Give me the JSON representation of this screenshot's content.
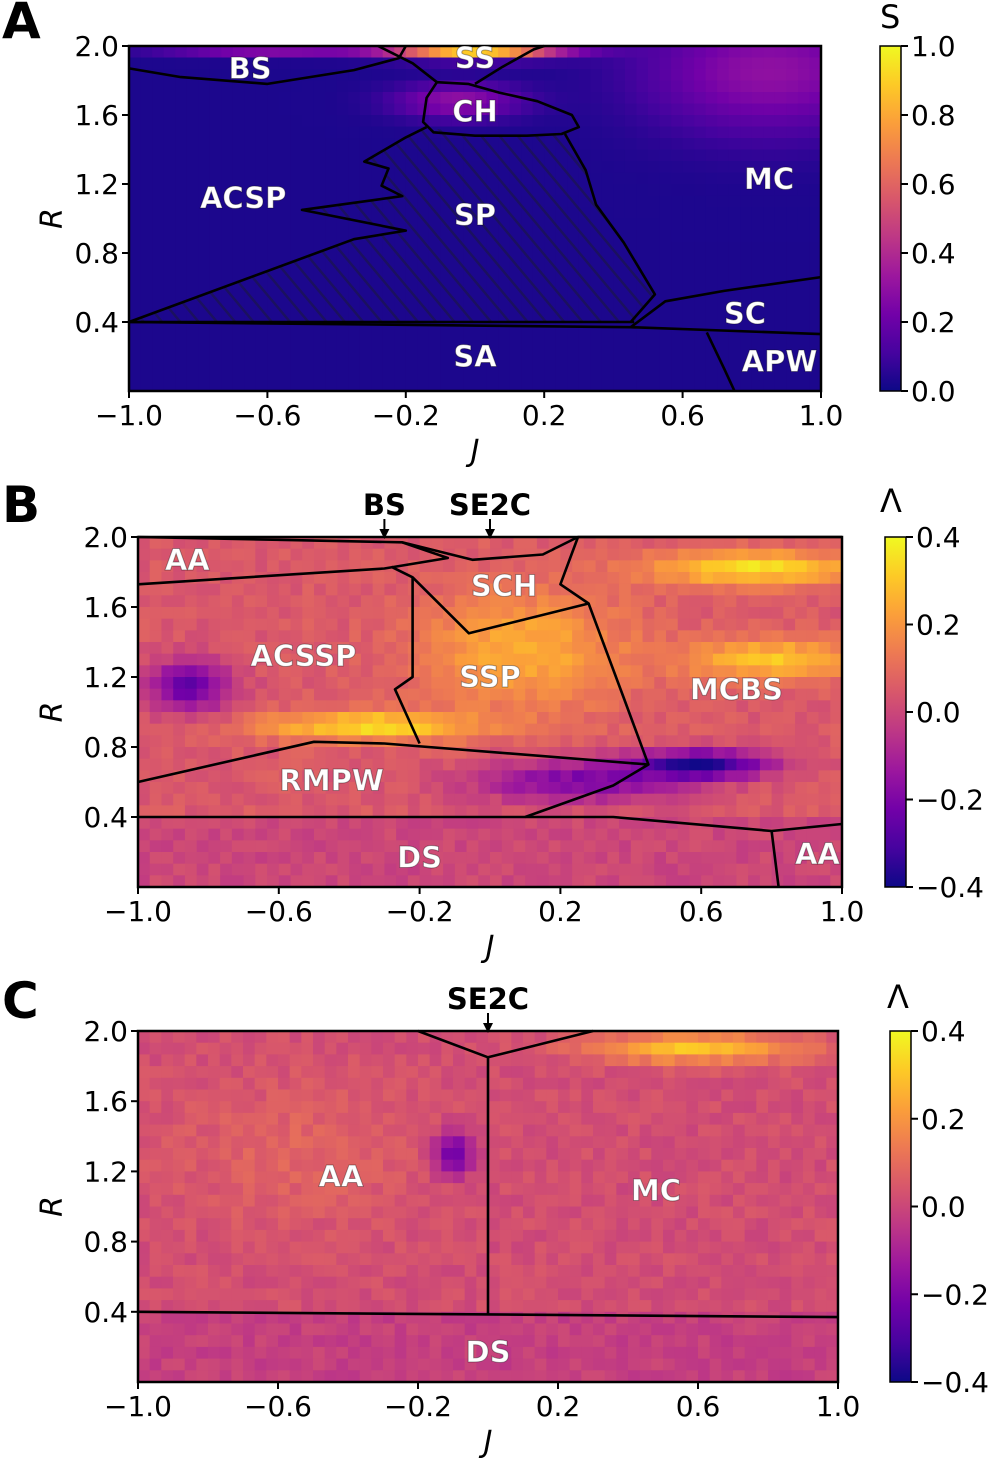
{
  "figure": {
    "colors": {
      "plasma": [
        "#0d0887",
        "#46039f",
        "#7201a8",
        "#9c179e",
        "#bd3786",
        "#d8576b",
        "#ed7953",
        "#fb9f3a",
        "#fdca26",
        "#f0f921"
      ],
      "boundary": "#000000",
      "region_label": "#ffffff",
      "tick_text": "#000000"
    }
  },
  "chart_data": [
    {
      "panel": "A",
      "type": "heatmap",
      "xlabel": "J",
      "ylabel": "R",
      "xlim": [
        -1.0,
        1.0
      ],
      "ylim": [
        0.0,
        2.0
      ],
      "xticks": [
        "−1.0",
        "−0.6",
        "−0.2",
        "0.2",
        "0.6",
        "1.0"
      ],
      "xtick_values": [
        -1.0,
        -0.6,
        -0.2,
        0.2,
        0.6,
        1.0
      ],
      "yticks": [
        "0.4",
        "0.8",
        "1.2",
        "1.6",
        "2.0"
      ],
      "ytick_values": [
        0.4,
        0.8,
        1.2,
        1.6,
        2.0
      ],
      "colorbar": {
        "label": "S",
        "range": [
          0.0,
          1.0
        ],
        "ticks": [
          "0.0",
          "0.2",
          "0.4",
          "0.6",
          "0.8",
          "1.0"
        ],
        "tick_values": [
          0.0,
          0.2,
          0.4,
          0.6,
          0.8,
          1.0
        ],
        "colormap": "plasma"
      },
      "background_value": 0.03,
      "hot_spots": [
        {
          "J": 0.0,
          "R": 1.98,
          "value": 0.95,
          "sJ": 0.25,
          "sR": 0.05
        },
        {
          "J": -0.05,
          "R": 1.68,
          "value": 0.3,
          "sJ": 0.18,
          "sR": 0.1
        },
        {
          "J": 0.85,
          "R": 1.85,
          "value": 0.3,
          "sJ": 0.35,
          "sR": 0.35
        },
        {
          "J": -0.6,
          "R": 1.98,
          "value": 0.28,
          "sJ": 0.3,
          "sR": 0.04
        }
      ],
      "regions": [
        {
          "label": "BS",
          "J": -0.65,
          "R": 1.87
        },
        {
          "label": "SS",
          "J": 0.0,
          "R": 1.93
        },
        {
          "label": "CH",
          "J": 0.0,
          "R": 1.62
        },
        {
          "label": "ACSP",
          "J": -0.67,
          "R": 1.12
        },
        {
          "label": "SP",
          "J": 0.0,
          "R": 1.02
        },
        {
          "label": "MC",
          "J": 0.85,
          "R": 1.23
        },
        {
          "label": "SC",
          "J": 0.78,
          "R": 0.45
        },
        {
          "label": "SA",
          "J": 0.0,
          "R": 0.2
        },
        {
          "label": "APW",
          "J": 0.88,
          "R": 0.17
        }
      ],
      "boundaries": [
        [
          [
            -1.0,
            1.87
          ],
          [
            -0.85,
            1.82
          ],
          [
            -0.6,
            1.78
          ],
          [
            -0.35,
            1.86
          ],
          [
            -0.22,
            1.93
          ],
          [
            -0.2,
            2.0
          ]
        ],
        [
          [
            -0.28,
            2.0
          ],
          [
            -0.18,
            1.9
          ],
          [
            -0.11,
            1.79
          ]
        ],
        [
          [
            0.0,
            1.78
          ],
          [
            0.08,
            1.88
          ],
          [
            0.17,
            1.98
          ],
          [
            0.2,
            2.0
          ]
        ],
        [
          [
            -0.11,
            1.79
          ],
          [
            -0.02,
            1.78
          ],
          [
            0.07,
            1.73
          ],
          [
            0.18,
            1.68
          ],
          [
            0.28,
            1.6
          ],
          [
            0.3,
            1.53
          ],
          [
            0.25,
            1.49
          ],
          [
            0.15,
            1.48
          ],
          [
            0.0,
            1.48
          ],
          [
            -0.12,
            1.5
          ],
          [
            -0.15,
            1.56
          ],
          [
            -0.14,
            1.7
          ],
          [
            -0.11,
            1.79
          ]
        ],
        [
          [
            -0.14,
            1.53
          ],
          [
            -0.2,
            1.47
          ],
          [
            -0.32,
            1.33
          ],
          [
            -0.25,
            1.29
          ],
          [
            -0.27,
            1.19
          ],
          [
            -0.21,
            1.13
          ],
          [
            -0.5,
            1.05
          ],
          [
            -0.2,
            0.93
          ],
          [
            -0.35,
            0.88
          ],
          [
            -1.0,
            0.4
          ],
          [
            0.46,
            0.4
          ]
        ],
        [
          [
            0.26,
            1.49
          ],
          [
            0.32,
            1.28
          ],
          [
            0.35,
            1.08
          ],
          [
            0.43,
            0.86
          ],
          [
            0.52,
            0.56
          ],
          [
            0.45,
            0.4
          ]
        ],
        [
          [
            -1.0,
            0.4
          ],
          [
            0.45,
            0.37
          ],
          [
            1.0,
            0.33
          ]
        ],
        [
          [
            0.45,
            0.37
          ],
          [
            0.55,
            0.52
          ],
          [
            0.72,
            0.58
          ],
          [
            1.0,
            0.66
          ]
        ],
        [
          [
            0.67,
            0.34
          ],
          [
            0.72,
            0.13
          ],
          [
            0.75,
            0.0
          ]
        ]
      ],
      "hatched": [
        [
          -0.14,
          1.53
        ],
        [
          -0.2,
          1.47
        ],
        [
          -0.32,
          1.33
        ],
        [
          -0.25,
          1.29
        ],
        [
          -0.27,
          1.19
        ],
        [
          -0.21,
          1.13
        ],
        [
          -0.5,
          1.05
        ],
        [
          -0.2,
          0.93
        ],
        [
          -0.35,
          0.88
        ],
        [
          -1.0,
          0.4
        ],
        [
          0.46,
          0.4
        ],
        [
          0.52,
          0.56
        ],
        [
          0.43,
          0.86
        ],
        [
          0.35,
          1.08
        ],
        [
          0.32,
          1.28
        ],
        [
          0.26,
          1.49
        ],
        [
          0.0,
          1.48
        ]
      ]
    },
    {
      "panel": "B",
      "type": "heatmap",
      "xlabel": "J",
      "ylabel": "R",
      "xlim": [
        -1.0,
        1.0
      ],
      "ylim": [
        0.0,
        2.0
      ],
      "xticks": [
        "−1.0",
        "−0.6",
        "−0.2",
        "0.2",
        "0.6",
        "1.0"
      ],
      "xtick_values": [
        -1.0,
        -0.6,
        -0.2,
        0.2,
        0.6,
        1.0
      ],
      "yticks": [
        "0.4",
        "0.8",
        "1.2",
        "1.6",
        "2.0"
      ],
      "ytick_values": [
        0.4,
        0.8,
        1.2,
        1.6,
        2.0
      ],
      "colorbar": {
        "label": "Λ",
        "range": [
          -0.4,
          0.4
        ],
        "ticks": [
          "−0.4",
          "−0.2",
          "0.0",
          "0.2",
          "0.4"
        ],
        "tick_values": [
          -0.4,
          -0.2,
          0.0,
          0.2,
          0.4
        ],
        "colormap": "plasma"
      },
      "background_value": 0.05,
      "hot_spots": [
        {
          "J": -0.35,
          "R": 0.92,
          "value": 0.35,
          "sJ": 0.3,
          "sR": 0.08
        },
        {
          "J": 0.1,
          "R": 1.35,
          "value": 0.25,
          "sJ": 0.3,
          "sR": 0.35
        },
        {
          "J": 0.8,
          "R": 1.3,
          "value": 0.3,
          "sJ": 0.25,
          "sR": 0.12
        },
        {
          "J": 0.75,
          "R": 1.82,
          "value": 0.35,
          "sJ": 0.3,
          "sR": 0.1
        },
        {
          "J": 0.6,
          "R": 0.7,
          "value": -0.35,
          "sJ": 0.2,
          "sR": 0.08
        },
        {
          "J": -0.85,
          "R": 1.15,
          "value": -0.25,
          "sJ": 0.12,
          "sR": 0.15
        },
        {
          "J": 0.25,
          "R": 0.6,
          "value": -0.2,
          "sJ": 0.3,
          "sR": 0.12
        }
      ],
      "band_value": 0.0,
      "band_rmax": 0.4,
      "band_jmin": -1.0,
      "band_jmax": 1.0,
      "regions": [
        {
          "label": "AA",
          "J": -0.86,
          "R": 1.87
        },
        {
          "label": "SCH",
          "J": 0.04,
          "R": 1.72
        },
        {
          "label": "ACSSP",
          "J": -0.53,
          "R": 1.32
        },
        {
          "label": "SSP",
          "J": 0.0,
          "R": 1.2
        },
        {
          "label": "MCBS",
          "J": 0.7,
          "R": 1.13
        },
        {
          "label": "RMPW",
          "J": -0.45,
          "R": 0.61
        },
        {
          "label": "DS",
          "J": -0.2,
          "R": 0.17
        },
        {
          "label": "AA",
          "J": 0.93,
          "R": 0.19
        }
      ],
      "annotations": [
        {
          "label": "BS",
          "J": -0.3
        },
        {
          "label": "SE2C",
          "J": 0.0
        }
      ],
      "boundaries": [
        [
          [
            -1.0,
            2.0
          ],
          [
            -0.25,
            1.97
          ],
          [
            -0.12,
            1.88
          ],
          [
            -0.3,
            1.82
          ],
          [
            -1.0,
            1.73
          ]
        ],
        [
          [
            -0.25,
            1.97
          ],
          [
            -0.05,
            1.87
          ],
          [
            0.15,
            1.9
          ],
          [
            0.25,
            2.0
          ]
        ],
        [
          [
            -0.28,
            1.83
          ],
          [
            -0.22,
            1.77
          ],
          [
            -0.06,
            1.45
          ],
          [
            0.28,
            1.62
          ],
          [
            0.2,
            1.73
          ],
          [
            0.25,
            2.0
          ],
          [
            1.0,
            2.0
          ]
        ],
        [
          [
            -0.22,
            1.77
          ],
          [
            -0.22,
            1.2
          ],
          [
            -0.27,
            1.13
          ],
          [
            -0.2,
            0.82
          ]
        ],
        [
          [
            0.28,
            1.62
          ],
          [
            0.38,
            1.08
          ],
          [
            0.45,
            0.7
          ],
          [
            0.35,
            0.58
          ],
          [
            0.1,
            0.4
          ]
        ],
        [
          [
            -1.0,
            0.6
          ],
          [
            -0.5,
            0.83
          ],
          [
            -0.3,
            0.82
          ],
          [
            0.45,
            0.7
          ]
        ],
        [
          [
            -1.0,
            0.4
          ],
          [
            0.35,
            0.4
          ],
          [
            0.8,
            0.32
          ],
          [
            1.0,
            0.36
          ]
        ],
        [
          [
            0.8,
            0.32
          ],
          [
            0.82,
            0.0
          ]
        ]
      ]
    },
    {
      "panel": "C",
      "type": "heatmap",
      "xlabel": "J",
      "ylabel": "R",
      "xlim": [
        -1.0,
        1.0
      ],
      "ylim": [
        0.0,
        2.0
      ],
      "xticks": [
        "−1.0",
        "−0.6",
        "−0.2",
        "0.2",
        "0.6",
        "1.0"
      ],
      "xtick_values": [
        -1.0,
        -0.6,
        -0.2,
        0.2,
        0.6,
        1.0
      ],
      "yticks": [
        "0.4",
        "0.8",
        "1.2",
        "1.6",
        "2.0"
      ],
      "ytick_values": [
        0.4,
        0.8,
        1.2,
        1.6,
        2.0
      ],
      "colorbar": {
        "label": "Λ",
        "range": [
          -0.4,
          0.4
        ],
        "ticks": [
          "−0.4",
          "−0.2",
          "0.0",
          "0.2",
          "0.4"
        ],
        "tick_values": [
          -0.4,
          -0.2,
          0.0,
          0.2,
          0.4
        ],
        "colormap": "plasma"
      },
      "background_value": 0.02,
      "hot_spots": [
        {
          "J": 0.6,
          "R": 1.9,
          "value": 0.3,
          "sJ": 0.3,
          "sR": 0.08
        },
        {
          "J": -0.1,
          "R": 1.3,
          "value": -0.25,
          "sJ": 0.06,
          "sR": 0.12
        },
        {
          "J": -0.55,
          "R": 1.3,
          "value": 0.08,
          "sJ": 0.35,
          "sR": 0.4
        }
      ],
      "band_value": -0.02,
      "band_rmax": 0.38,
      "band_jmin": -1.0,
      "band_jmax": 1.0,
      "regions": [
        {
          "label": "AA",
          "J": -0.42,
          "R": 1.17
        },
        {
          "label": "MC",
          "J": 0.48,
          "R": 1.09
        },
        {
          "label": "DS",
          "J": 0.0,
          "R": 0.17
        }
      ],
      "annotations": [
        {
          "label": "SE2C",
          "J": 0.0
        }
      ],
      "boundaries": [
        [
          [
            -0.2,
            2.0
          ],
          [
            0.0,
            1.85
          ],
          [
            0.3,
            2.0
          ]
        ],
        [
          [
            0.0,
            1.85
          ],
          [
            0.0,
            0.39
          ]
        ],
        [
          [
            -1.0,
            0.4
          ],
          [
            1.0,
            0.37
          ]
        ]
      ]
    }
  ],
  "panel_letters": [
    "A",
    "B",
    "C"
  ]
}
